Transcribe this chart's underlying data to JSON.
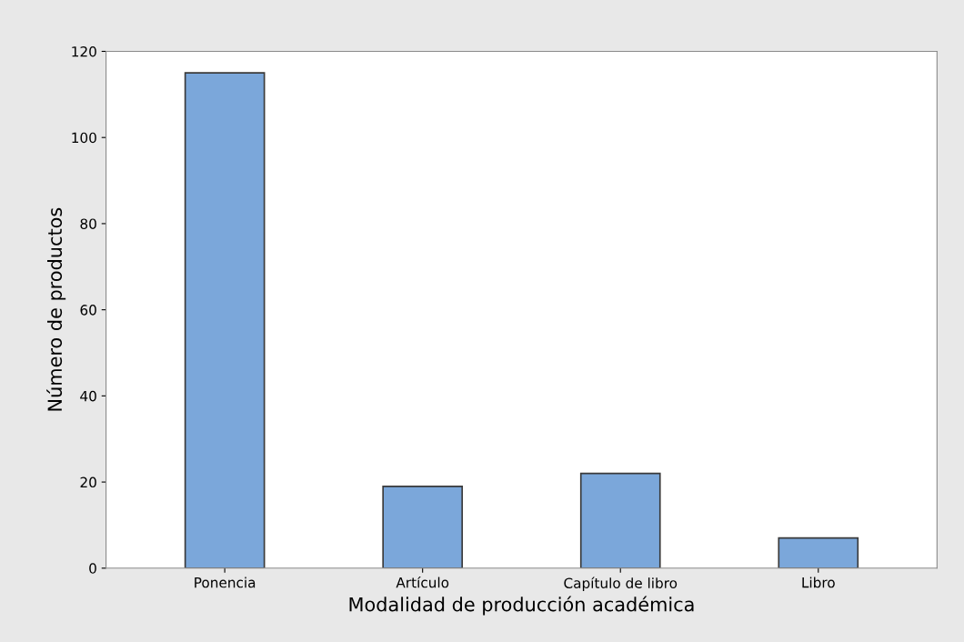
{
  "chart_data": {
    "type": "bar",
    "xlabel": "Modalidad de producción académica",
    "ylabel": "Número de productos",
    "categories": [
      "Ponencia",
      "Artículo",
      "Capítulo de libro",
      "Libro"
    ],
    "values": [
      115,
      19,
      22,
      7
    ],
    "color": "#7ba7da",
    "ylim": [
      0,
      120
    ],
    "yticks": [
      0,
      20,
      40,
      60,
      80,
      100,
      120
    ],
    "grid": false,
    "legend": false
  }
}
